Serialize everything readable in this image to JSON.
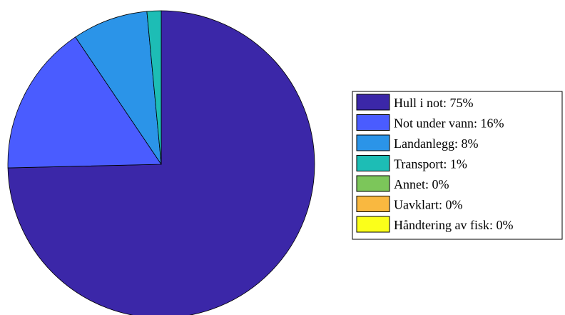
{
  "chart_data": {
    "type": "pie",
    "title": "",
    "legend_placement": "right",
    "slices": [
      {
        "label": "Hull i not:  75%",
        "value": 75,
        "color": "#3b27a8"
      },
      {
        "label": "Not under vann:  16%",
        "value": 16,
        "color": "#4a5cff"
      },
      {
        "label": "Landanlegg:  8%",
        "value": 8,
        "color": "#2b94e8"
      },
      {
        "label": "Transport:  1%",
        "value": 1.5,
        "color": "#1dbdb5"
      },
      {
        "label": "Annet:  0%",
        "value": 0,
        "color": "#7cc65a"
      },
      {
        "label": "Uavklart:  0%",
        "value": 0,
        "color": "#f9b840"
      },
      {
        "label": "Håndtering av fisk:  0%",
        "value": 0,
        "color": "#fbff1a"
      }
    ]
  }
}
